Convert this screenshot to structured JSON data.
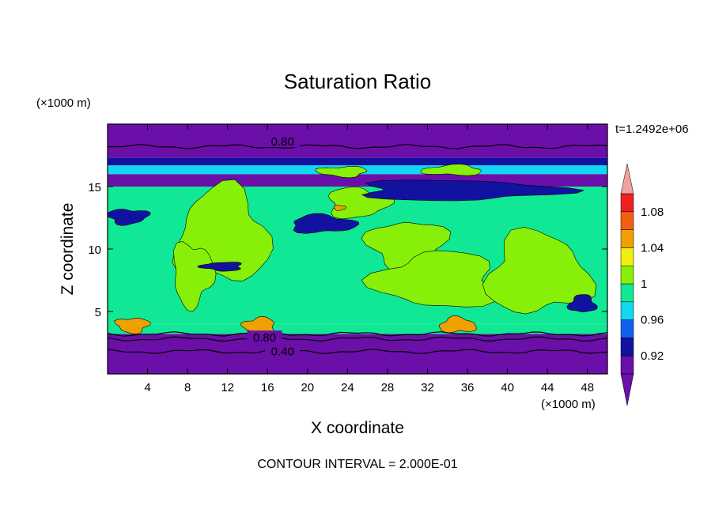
{
  "chart_data": {
    "type": "heatmap",
    "title": "Saturation Ratio",
    "time_label": "t=1.2492e+06",
    "xlabel": "X coordinate",
    "ylabel": "Z coordinate",
    "x_unit": "(×1000 m)",
    "y_unit": "(×1000 m)",
    "xlim": [
      0,
      50
    ],
    "ylim": [
      0,
      20
    ],
    "x_ticks": [
      4,
      8,
      12,
      16,
      20,
      24,
      28,
      32,
      36,
      40,
      44,
      48
    ],
    "y_ticks": [
      5,
      10,
      15
    ],
    "footer": "CONTOUR INTERVAL = 2.000E-01",
    "contour_labels": [
      {
        "text": "0.80",
        "x": 17.5,
        "z": 18.6
      },
      {
        "text": "0.80",
        "x": 15.7,
        "z": 2.9
      },
      {
        "text": "0.40",
        "x": 17.5,
        "z": 1.8
      }
    ],
    "colorbar": {
      "levels": [
        0.9,
        0.92,
        0.94,
        0.96,
        0.98,
        1.0,
        1.02,
        1.04,
        1.06,
        1.08,
        1.1
      ],
      "tick_labels": [
        {
          "value": 0.92,
          "text": "0.92"
        },
        {
          "value": 0.96,
          "text": "0.96"
        },
        {
          "value": 1.0,
          "text": "1"
        },
        {
          "value": 1.04,
          "text": "1.04"
        },
        {
          "value": 1.08,
          "text": "1.08"
        }
      ],
      "colors": [
        "#6a0fa8",
        "#1212a0",
        "#1060f0",
        "#10d8f0",
        "#10e896",
        "#88f008",
        "#f0f010",
        "#f0a000",
        "#f06010",
        "#f02020"
      ],
      "under_color": "#6a0fa8",
      "over_color": "#f0a0a0"
    },
    "bands": [
      {
        "z0": 0.0,
        "z1": 3.2,
        "value": 0.8
      },
      {
        "z0": 3.2,
        "z1": 4.0,
        "value": 0.99
      },
      {
        "z0": 4.0,
        "z1": 15.0,
        "value": 0.99
      },
      {
        "z0": 15.0,
        "z1": 16.0,
        "value": 0.9
      },
      {
        "z0": 16.0,
        "z1": 16.7,
        "value": 0.97
      },
      {
        "z0": 16.7,
        "z1": 17.3,
        "value": 0.93
      },
      {
        "z0": 17.3,
        "z1": 20.0,
        "value": 0.85
      }
    ],
    "regions": [
      {
        "kind": "saturated",
        "value": 1.01,
        "x": 11.5,
        "z": 11.0,
        "rx": 4.5,
        "rz": 3.8
      },
      {
        "kind": "saturated",
        "value": 1.01,
        "x": 25.0,
        "z": 13.7,
        "rx": 3.0,
        "rz": 1.2
      },
      {
        "kind": "saturated",
        "value": 1.01,
        "x": 30.0,
        "z": 10.3,
        "rx": 3.8,
        "rz": 2.0
      },
      {
        "kind": "saturated",
        "value": 1.01,
        "x": 33.0,
        "z": 7.5,
        "rx": 6.0,
        "rz": 2.2
      },
      {
        "kind": "saturated",
        "value": 1.01,
        "x": 43.0,
        "z": 8.0,
        "rx": 5.0,
        "rz": 3.2
      },
      {
        "kind": "saturated",
        "value": 1.01,
        "x": 8.5,
        "z": 8.0,
        "rx": 2.0,
        "rz": 2.5
      },
      {
        "kind": "saturated",
        "value": 1.01,
        "x": 23.5,
        "z": 16.2,
        "rx": 2.5,
        "rz": 0.4
      },
      {
        "kind": "saturated",
        "value": 1.01,
        "x": 34.5,
        "z": 16.3,
        "rx": 3.0,
        "rz": 0.4
      },
      {
        "kind": "dry",
        "value": 0.93,
        "x": 21.5,
        "z": 12.0,
        "rx": 3.2,
        "rz": 0.7
      },
      {
        "kind": "dry",
        "value": 0.93,
        "x": 2.0,
        "z": 12.6,
        "rx": 2.0,
        "rz": 0.6
      },
      {
        "kind": "dry",
        "value": 0.93,
        "x": 11.5,
        "z": 8.6,
        "rx": 2.0,
        "rz": 0.35
      },
      {
        "kind": "dry",
        "value": 0.93,
        "x": 47.5,
        "z": 5.6,
        "rx": 1.3,
        "rz": 0.7
      },
      {
        "kind": "dry",
        "value": 0.93,
        "x": 35.0,
        "z": 14.7,
        "rx": 10.0,
        "rz": 0.8
      },
      {
        "kind": "moist",
        "value": 1.05,
        "x": 2.5,
        "z": 3.9,
        "rx": 1.6,
        "rz": 0.6
      },
      {
        "kind": "moist",
        "value": 1.05,
        "x": 15.2,
        "z": 3.9,
        "rx": 1.6,
        "rz": 0.6
      },
      {
        "kind": "moist",
        "value": 1.05,
        "x": 35.0,
        "z": 3.9,
        "rx": 1.8,
        "rz": 0.6
      },
      {
        "kind": "moist",
        "value": 1.05,
        "x": 23.2,
        "z": 13.3,
        "rx": 0.6,
        "rz": 0.2
      }
    ]
  }
}
